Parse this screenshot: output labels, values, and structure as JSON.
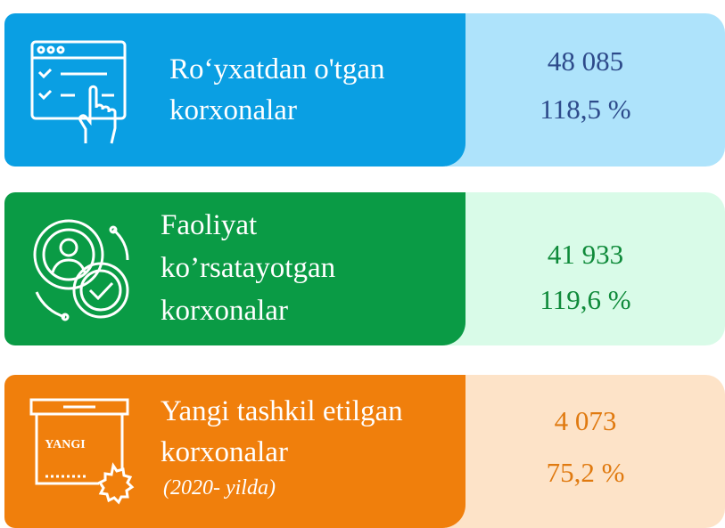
{
  "cards": [
    {
      "label_lines": [
        "Ro‘yxatdan o'tgan",
        "korxonalar"
      ],
      "value": "48 085",
      "percent": "118,5 %"
    },
    {
      "label_lines": [
        "Faoliyat",
        "ko’rsatayotgan",
        "korxonalar"
      ],
      "value": "41 933",
      "percent": "119,6 %"
    },
    {
      "label_lines": [
        "Yangi tashkil etilgan",
        "korxonalar"
      ],
      "note": "(2020- yilda)",
      "icon_label": "YANGI",
      "value": "4 073",
      "percent": "75,2 %"
    }
  ]
}
